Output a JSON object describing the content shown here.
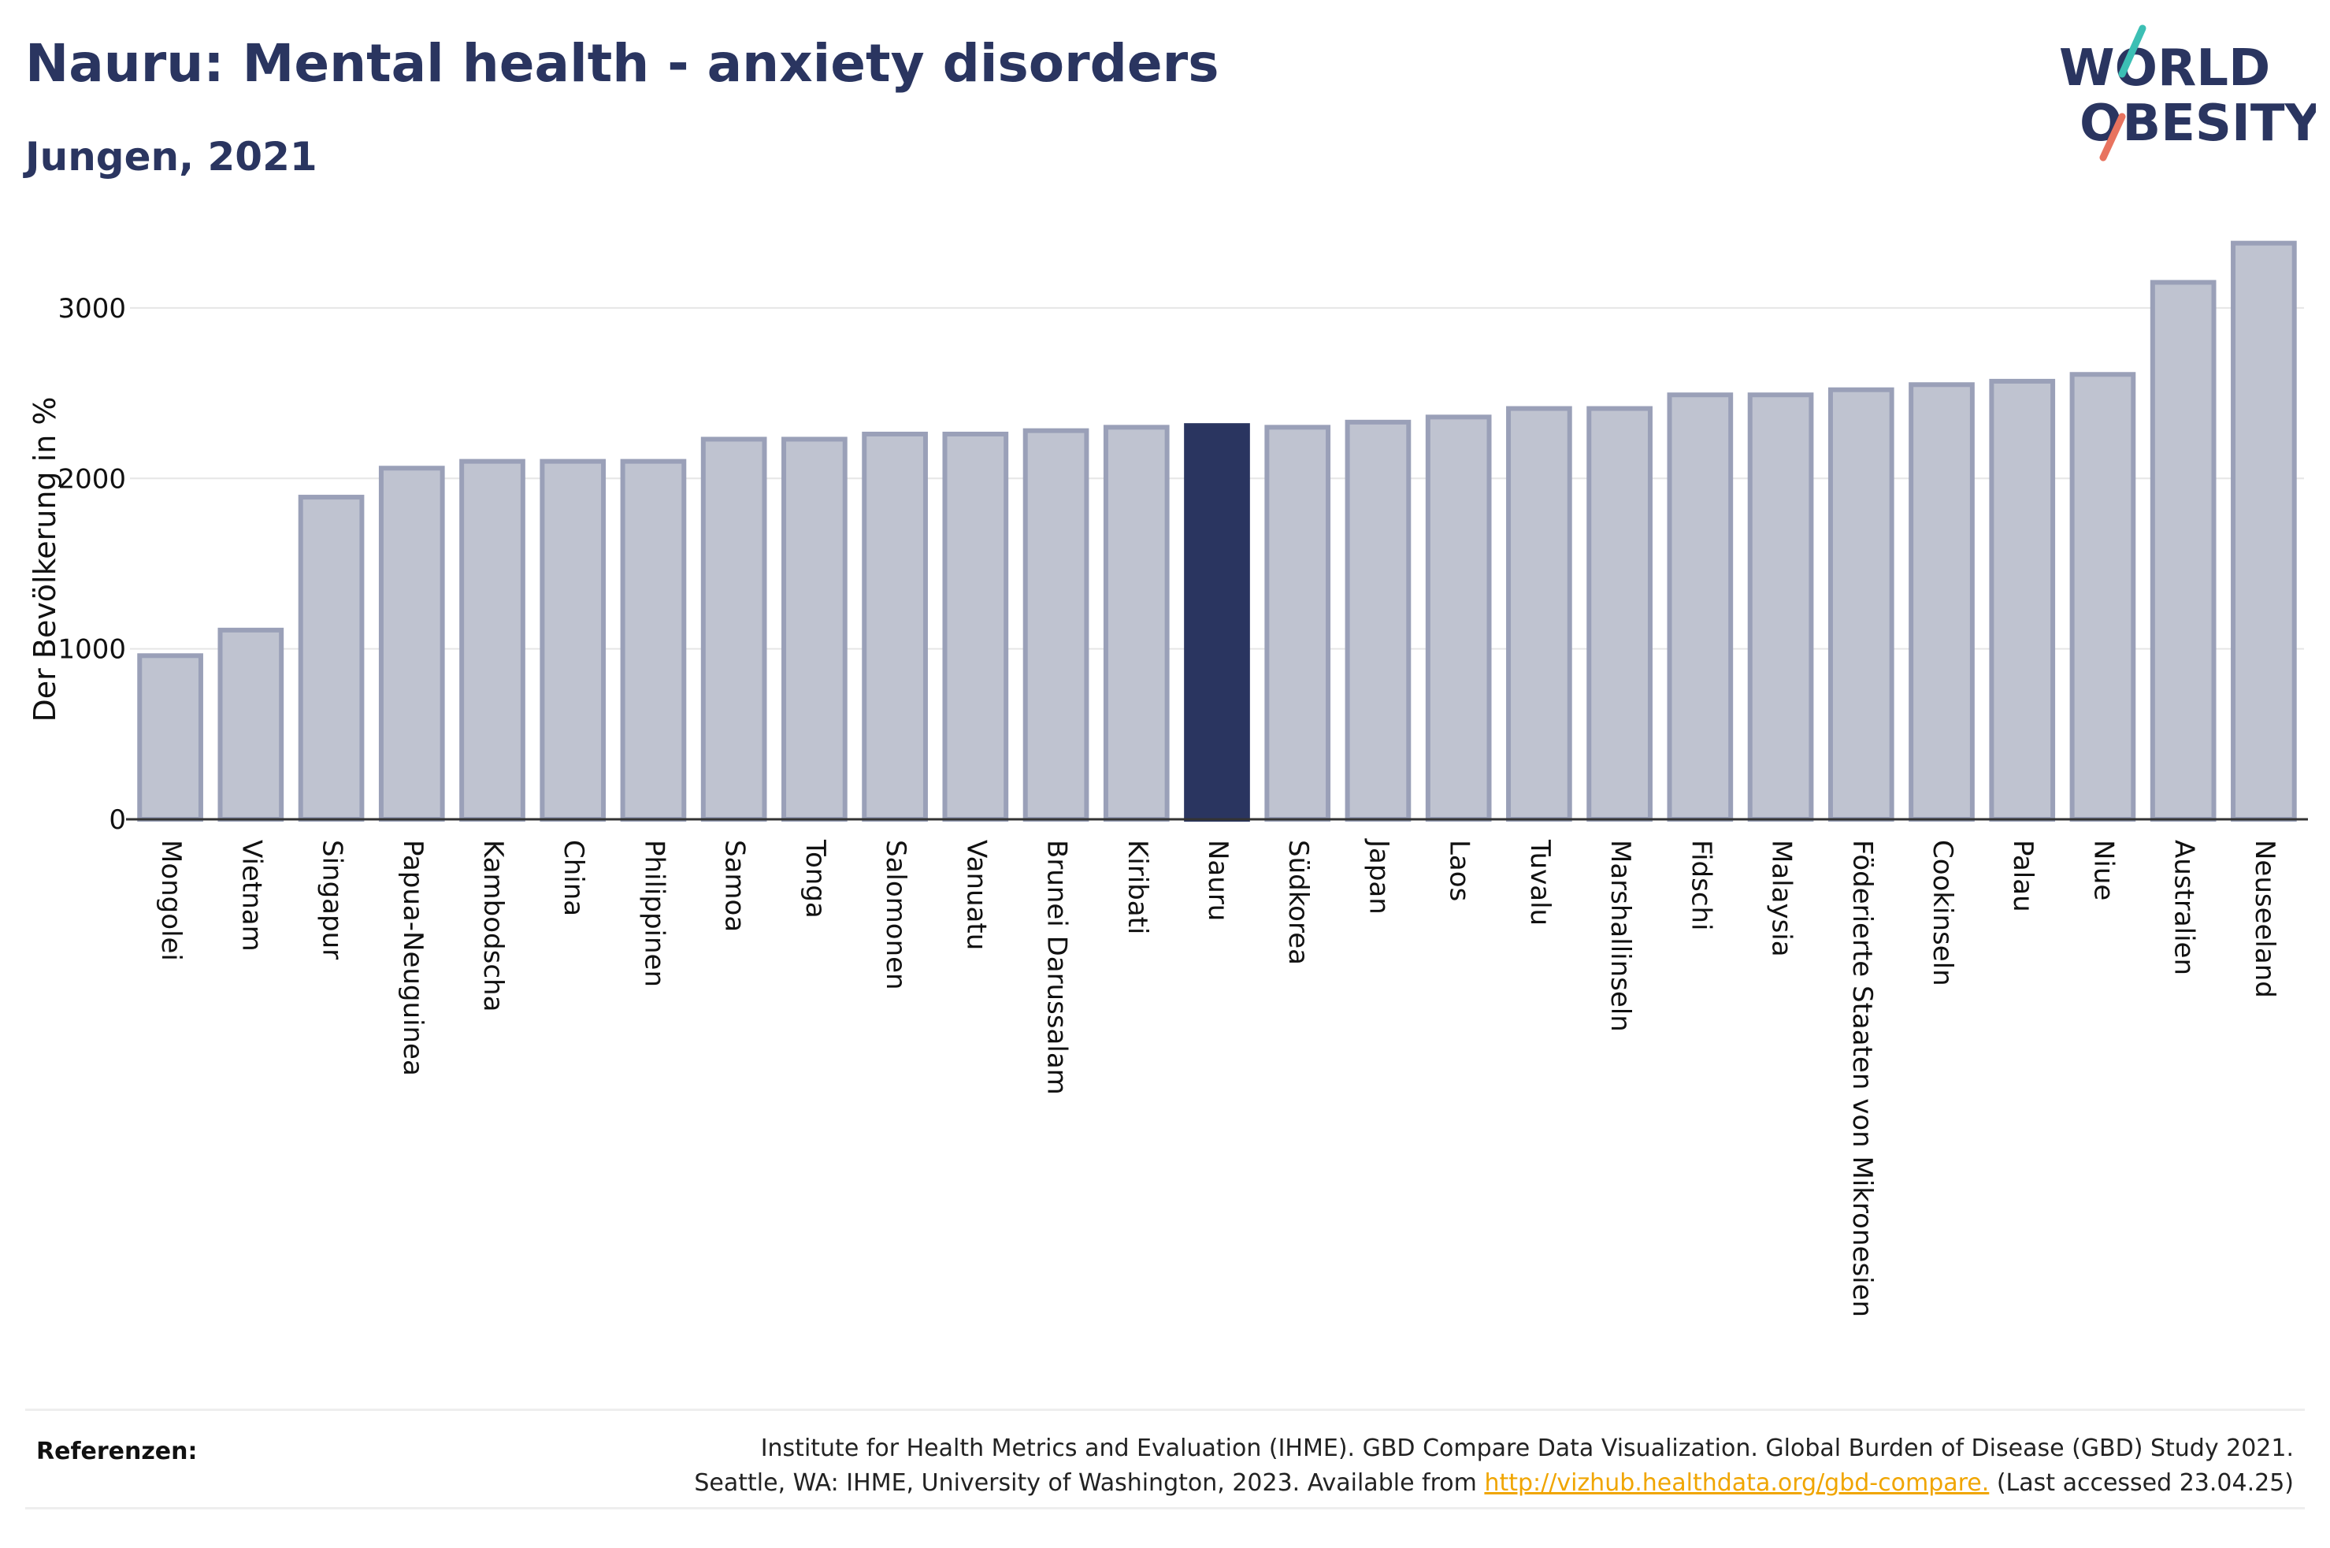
{
  "header": {
    "title": "Nauru: Mental health - anxiety disorders",
    "subtitle": "Jungen, 2021"
  },
  "logo": {
    "line1": "WORLD",
    "line2": "OBESITY"
  },
  "chart_data": {
    "type": "bar",
    "title": "Nauru: Mental health - anxiety disorders",
    "subtitle": "Jungen, 2021",
    "ylabel": "Der Bevölkerung in %",
    "xlabel": "",
    "ylim": [
      0,
      3420
    ],
    "yticks": [
      0,
      1000,
      2000,
      3000
    ],
    "grid": true,
    "highlight": "Nauru",
    "colors": {
      "bar_fill": "#bfc3d0",
      "bar_stroke": "#9aa0b8",
      "highlight": "#2a3560",
      "grid": "#e6e6e6",
      "axis": "#333333"
    },
    "categories": [
      "Mongolei",
      "Vietnam",
      "Singapur",
      "Papua-Neuguinea",
      "Kambodscha",
      "China",
      "Philippinen",
      "Samoa",
      "Tonga",
      "Salomonen",
      "Vanuatu",
      "Brunei Darussalam",
      "Kiribati",
      "Nauru",
      "Südkorea",
      "Japan",
      "Laos",
      "Tuvalu",
      "Marshallinseln",
      "Fidschi",
      "Malaysia",
      "Föderierte Staaten von Mikronesien",
      "Cookinseln",
      "Palau",
      "Niue",
      "Australien",
      "Neuseeland"
    ],
    "values": [
      960,
      1110,
      1890,
      2060,
      2100,
      2100,
      2100,
      2230,
      2230,
      2260,
      2260,
      2280,
      2300,
      2310,
      2300,
      2330,
      2360,
      2410,
      2410,
      2490,
      2490,
      2520,
      2550,
      2570,
      2610,
      3150,
      3380
    ]
  },
  "footer": {
    "label": "Referenzen:",
    "line1": "Institute for Health Metrics and Evaluation (IHME). GBD Compare Data Visualization. Global Burden of Disease (GBD) Study 2021.",
    "line2_pre": "Seattle, WA: IHME, University of Washington, 2023. Available from",
    "link": "http://vizhub.healthdata.org/gbd-compare.",
    "line2_post": "(Last accessed 23.04.25)"
  }
}
